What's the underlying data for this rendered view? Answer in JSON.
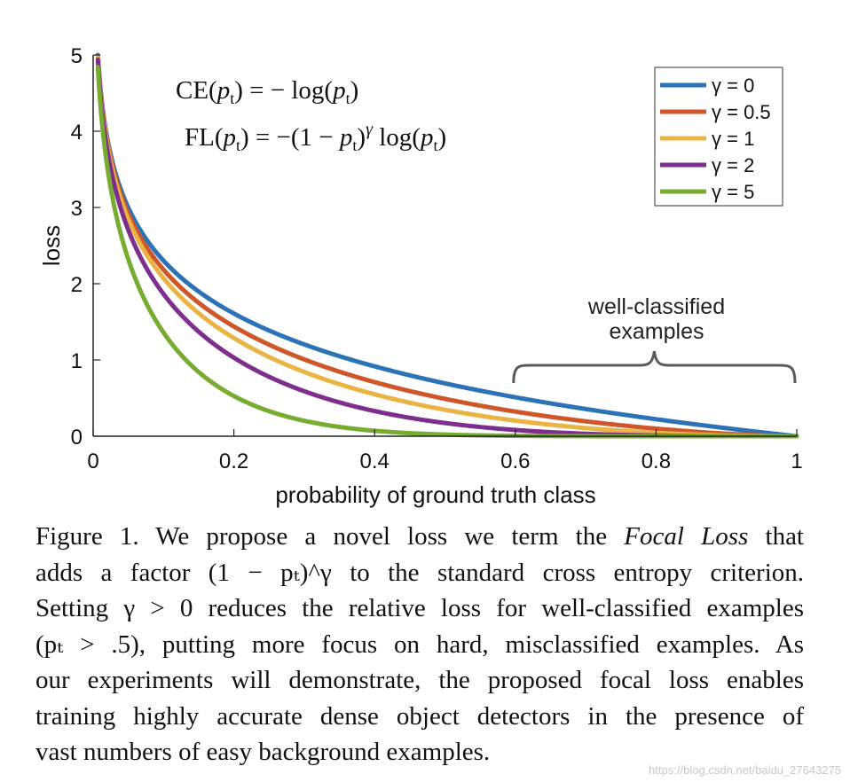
{
  "chart_data": {
    "type": "line",
    "xlabel": "probability of ground truth class",
    "ylabel": "loss",
    "xlim": [
      0,
      1
    ],
    "ylim": [
      0,
      5
    ],
    "x_ticks": [
      0,
      0.2,
      0.4,
      0.6,
      0.8,
      1
    ],
    "x_tick_labels": [
      "0",
      "0.2",
      "0.4",
      "0.6",
      "0.8",
      "1"
    ],
    "y_ticks": [
      0,
      1,
      2,
      3,
      4,
      5
    ],
    "y_tick_labels": [
      "0",
      "1",
      "2",
      "3",
      "4",
      "5"
    ],
    "grid": false,
    "legend_position": "top-right",
    "function": "FL(p) = -(1 - p)^gamma * log(p)",
    "series": [
      {
        "name": "γ = 0",
        "gamma": 0,
        "color": "#2c72b6"
      },
      {
        "name": "γ = 0.5",
        "gamma": 0.5,
        "color": "#cf5628"
      },
      {
        "name": "γ = 1",
        "gamma": 1,
        "color": "#e9b443"
      },
      {
        "name": "γ = 2",
        "gamma": 2,
        "color": "#7e2f8e"
      },
      {
        "name": "γ = 5",
        "gamma": 5,
        "color": "#77ac30"
      }
    ],
    "formulas": {
      "ce": "CE(p_t) = − log(p_t)",
      "fl": "FL(p_t) = −(1 − p_t)^γ log(p_t)"
    },
    "annotation": {
      "line1": "well-classified",
      "line2": "examples",
      "brace_x_range": [
        0.6,
        1.0
      ]
    }
  },
  "caption": {
    "line1a": "Figure 1. We propose a novel loss we term the ",
    "line1b": "Focal Loss",
    "line1c": " that",
    "line2": "adds a factor (1 − pₜ)^γ to the standard cross entropy criterion.",
    "line3": "Setting γ > 0 reduces the relative loss for well-classified examples",
    "line4": "(pₜ > .5), putting more focus on hard, misclassified examples. As",
    "line5": "our experiments will demonstrate, the proposed focal loss enables",
    "line6": "training highly accurate dense object detectors in the presence of",
    "line7": "vast numbers of easy background examples."
  },
  "watermark": "https://blog.csdn.net/baidu_27643275"
}
